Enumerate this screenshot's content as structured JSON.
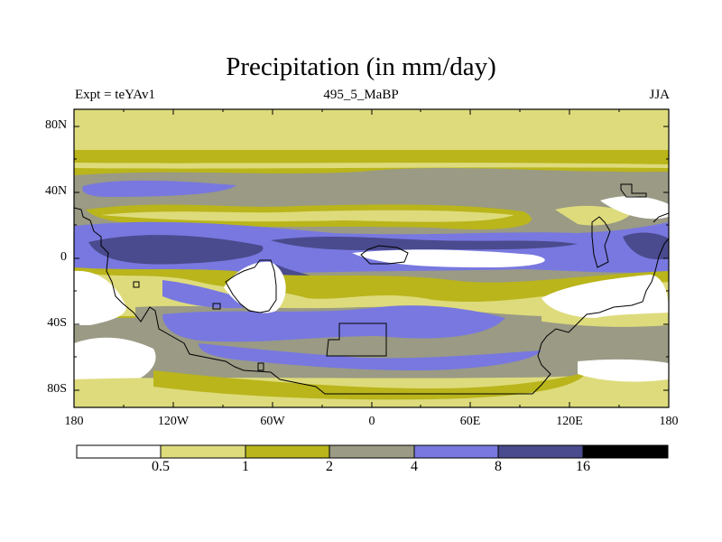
{
  "title": "Precipitation (in mm/day)",
  "subtitle_left": "Expt = teYAv1",
  "subtitle_center": "495_5_MaBP",
  "subtitle_right": "JJA",
  "lat_labels": [
    "80N",
    "40N",
    "0",
    "40S",
    "80S"
  ],
  "lon_labels": [
    "180",
    "120W",
    "60W",
    "0",
    "60E",
    "120E",
    "180"
  ],
  "colorbar": {
    "levels": [
      "0.5",
      "1",
      "2",
      "4",
      "8",
      "16"
    ],
    "colors": [
      "#ffffff",
      "#dedb7c",
      "#b9b51b",
      "#9a9a85",
      "#7878e0",
      "#4a4a8e",
      "#000000"
    ]
  },
  "palette": {
    "dry": "#ffffff",
    "light_yellow": "#dedb7c",
    "olive": "#b9b51b",
    "gray": "#9a9a85",
    "blue": "#7878e0",
    "dark_blue": "#4a4a8e"
  }
}
